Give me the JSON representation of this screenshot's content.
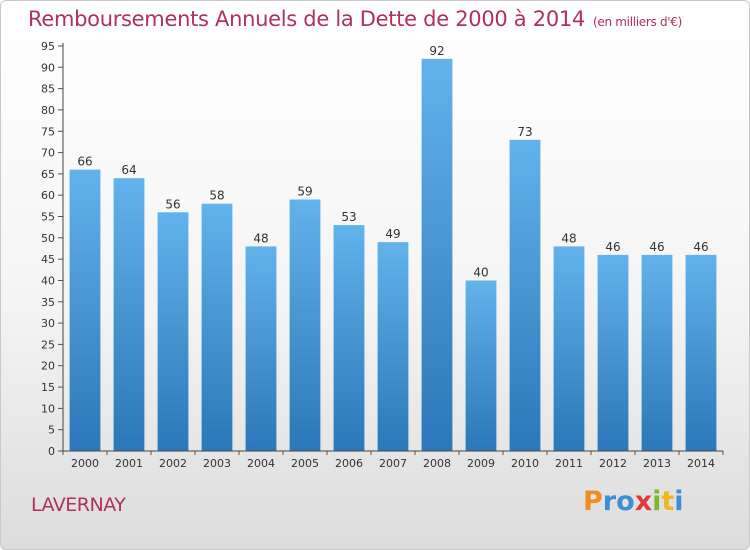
{
  "title": "Remboursements Annuels de la Dette de 2000 à 2014",
  "unit": "(en milliers d'€)",
  "commune": "LAVERNAY",
  "logo": {
    "letters": [
      "P",
      "r",
      "o",
      "x",
      "i",
      "t",
      "i"
    ],
    "colors": [
      "#f28c1e",
      "#3a8fd6",
      "#3a8fd6",
      "#e23a3a",
      "#7ab929",
      "#f2b61e",
      "#3a8fd6"
    ]
  },
  "colors": {
    "bar_top": "#62b2ec",
    "bar_bottom": "#2a78b7",
    "title": "#b0305f"
  },
  "chart_data": {
    "type": "bar",
    "categories": [
      "2000",
      "2001",
      "2002",
      "2003",
      "2004",
      "2005",
      "2006",
      "2007",
      "2008",
      "2009",
      "2010",
      "2011",
      "2012",
      "2013",
      "2014"
    ],
    "values": [
      66,
      64,
      56,
      58,
      48,
      59,
      53,
      49,
      92,
      40,
      73,
      48,
      46,
      46,
      46
    ],
    "data_labels": [
      "66",
      "64",
      "56",
      "58",
      "48",
      "59",
      "53",
      "49",
      "92",
      "40",
      "73",
      "48",
      "46",
      "46",
      "46"
    ],
    "ylim": [
      0,
      95
    ],
    "yticks": [
      0,
      5,
      10,
      15,
      20,
      25,
      30,
      35,
      40,
      45,
      50,
      55,
      60,
      65,
      70,
      75,
      80,
      85,
      90,
      95
    ],
    "ytick_labels": [
      "0",
      "5",
      "10",
      "15",
      "20",
      "25",
      "30",
      "35",
      "40",
      "45",
      "50",
      "55",
      "60",
      "65",
      "70",
      "75",
      "80",
      "85",
      "90",
      "95"
    ],
    "grid": false,
    "legend": "none"
  }
}
